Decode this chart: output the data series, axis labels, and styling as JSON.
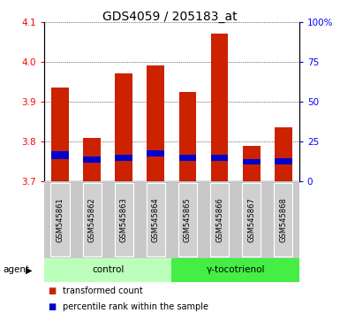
{
  "title": "GDS4059 / 205183_at",
  "categories": [
    "GSM545861",
    "GSM545862",
    "GSM545863",
    "GSM545864",
    "GSM545865",
    "GSM545866",
    "GSM545867",
    "GSM545868"
  ],
  "red_values": [
    3.935,
    3.81,
    3.97,
    3.99,
    3.925,
    4.07,
    3.79,
    3.835
  ],
  "blue_top": [
    3.775,
    3.762,
    3.768,
    3.778,
    3.767,
    3.768,
    3.757,
    3.758
  ],
  "blue_bottom": [
    3.757,
    3.748,
    3.752,
    3.762,
    3.751,
    3.752,
    3.743,
    3.742
  ],
  "ymin": 3.7,
  "ymax": 4.1,
  "yticks_left": [
    3.7,
    3.8,
    3.9,
    4.0,
    4.1
  ],
  "yticks_right": [
    0,
    25,
    50,
    75,
    100
  ],
  "yticks_right_labels": [
    "0",
    "25",
    "50",
    "75",
    "100%"
  ],
  "bar_width": 0.55,
  "red_color": "#cc2200",
  "blue_color": "#0000cc",
  "control_label": "control",
  "treatment_label": "γ-tocotrienol",
  "agent_label": "agent",
  "legend_red": "transformed count",
  "legend_blue": "percentile rank within the sample",
  "bg_color_plot": "#ffffff",
  "gray_box_color": "#d0d0d0",
  "gray_bg_color": "#c8c8c8",
  "green_ctrl_color": "#bbffbb",
  "green_treat_color": "#44ee44",
  "title_fontsize": 10,
  "tick_fontsize": 7.5,
  "label_fontsize": 7.5,
  "cat_fontsize": 6,
  "legend_fontsize": 7
}
